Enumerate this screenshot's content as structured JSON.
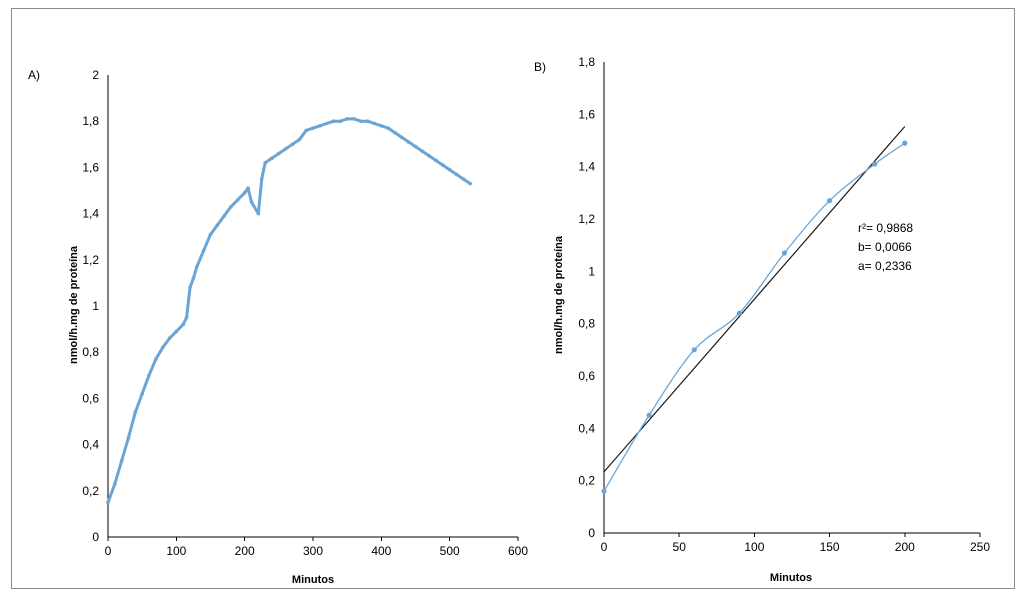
{
  "colors": {
    "series": "#6aa5d5",
    "fit": "#1a1a1a",
    "frame": "#8a8a8a"
  },
  "chart_data": [
    {
      "panel": "A)",
      "type": "line",
      "xlabel": "Minutos",
      "ylabel": "nmol/h.mg de proteína",
      "xlim": [
        0,
        600
      ],
      "ylim": [
        0,
        2
      ],
      "xticks": [
        "0",
        "100",
        "200",
        "300",
        "400",
        "500",
        "600"
      ],
      "yticks": [
        "0",
        "0,2",
        "0,4",
        "0,6",
        "0,8",
        "1",
        "1,2",
        "1,4",
        "1,6",
        "1,8",
        "2"
      ],
      "grid": false,
      "series": [
        {
          "x": [
            0,
            10,
            20,
            30,
            40,
            50,
            60,
            70,
            80,
            90,
            100,
            110,
            115,
            120,
            125,
            130,
            140,
            150,
            160,
            170,
            180,
            190,
            200,
            205,
            210,
            220,
            225,
            230,
            240,
            250,
            260,
            270,
            280,
            290,
            300,
            310,
            320,
            330,
            340,
            350,
            360,
            370,
            380,
            390,
            400,
            410,
            420,
            430,
            440,
            450,
            460,
            470,
            480,
            490,
            500,
            510,
            520,
            530
          ],
          "y": [
            0.15,
            0.23,
            0.33,
            0.43,
            0.54,
            0.62,
            0.7,
            0.77,
            0.82,
            0.86,
            0.89,
            0.92,
            0.95,
            1.08,
            1.12,
            1.17,
            1.24,
            1.31,
            1.35,
            1.39,
            1.43,
            1.46,
            1.49,
            1.51,
            1.45,
            1.4,
            1.55,
            1.62,
            1.64,
            1.66,
            1.68,
            1.7,
            1.72,
            1.76,
            1.77,
            1.78,
            1.79,
            1.8,
            1.8,
            1.81,
            1.81,
            1.8,
            1.8,
            1.79,
            1.78,
            1.77,
            1.75,
            1.73,
            1.71,
            1.69,
            1.67,
            1.65,
            1.63,
            1.61,
            1.59,
            1.57,
            1.55,
            1.53
          ]
        }
      ]
    },
    {
      "panel": "B)",
      "type": "scatter",
      "xlabel": "Minutos",
      "ylabel": "nmol/h.mg de proteína",
      "xlim": [
        0,
        250
      ],
      "ylim": [
        0,
        1.8
      ],
      "xticks": [
        "0",
        "50",
        "100",
        "150",
        "200",
        "250"
      ],
      "yticks": [
        "0",
        "0,2",
        "0,4",
        "0,6",
        "0,8",
        "1",
        "1,2",
        "1,4",
        "1,6",
        "1,8"
      ],
      "grid": false,
      "series": [
        {
          "x": [
            0,
            30,
            60,
            90,
            120,
            150,
            180,
            200
          ],
          "y": [
            0.16,
            0.45,
            0.7,
            0.84,
            1.07,
            1.27,
            1.41,
            1.49
          ]
        }
      ],
      "fit": {
        "x": [
          0,
          200
        ],
        "y": [
          0.2336,
          1.5536
        ]
      },
      "annotations": {
        "r2": "r²= 0,9868",
        "b": "b= 0,0066",
        "a": "a= 0,2336"
      }
    }
  ]
}
